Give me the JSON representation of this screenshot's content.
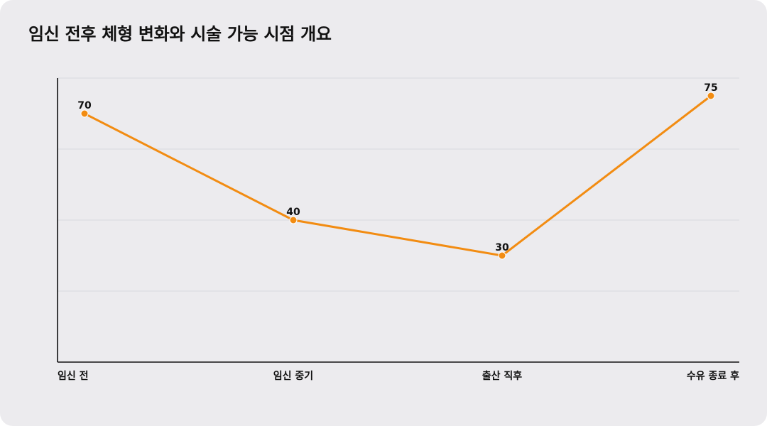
{
  "page": {
    "title": "임신 전후 체형 변화와 시술 가능 시점 개요"
  },
  "colors": {
    "background": "#ecebee",
    "series": "#f28c12",
    "axis": "#111111",
    "grid": "#d9d9dd"
  },
  "chart_data": {
    "type": "line",
    "title": "임신 전후 체형 변화와 시술 가능 시점 개요",
    "categories": [
      "임신 전",
      "임신 중기",
      "출산 직후",
      "수유 종료 후"
    ],
    "series": [
      {
        "values": [
          70,
          40,
          30,
          75
        ]
      }
    ],
    "ylim": [
      0,
      80
    ],
    "y_grid_step": 20,
    "y_tick_labels_shown": false,
    "grid": true,
    "legend": "none",
    "data_labels": true
  }
}
